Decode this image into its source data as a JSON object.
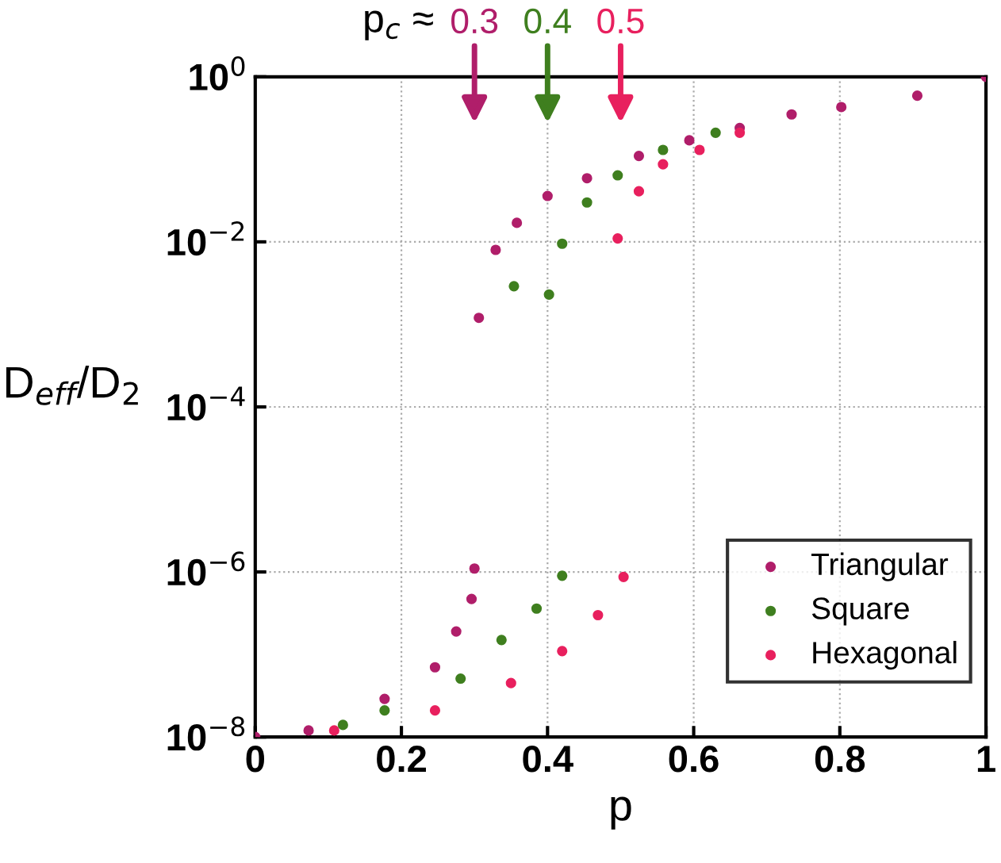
{
  "chart_data": {
    "type": "scatter",
    "xlabel": "p",
    "ylabel": "D$_{eff}$/D$_{2}$",
    "xlim": [
      0,
      1
    ],
    "xticks": [
      0,
      0.2,
      0.4,
      0.6,
      0.8,
      1
    ],
    "ylim": [
      1e-08,
      1
    ],
    "log": true,
    "yticks": [
      {
        "value": 1e-08,
        "label": "10$^{−8}$"
      },
      {
        "value": 1e-06,
        "label": "10$^{−6}$"
      },
      {
        "value": 0.0001,
        "label": "10$^{−4}$"
      },
      {
        "value": 0.01,
        "label": "10$^{−2}$"
      },
      {
        "value": 1,
        "label": "10$^{0}$"
      }
    ],
    "grid": true,
    "legend": "bottom right",
    "marker": "circle",
    "series": [
      {
        "name": "Triangular",
        "color": "#b01e6a",
        "x": [
          0,
          0.073,
          0.177,
          0.246,
          0.275,
          0.296,
          0.3,
          0.306,
          0.329,
          0.358,
          0.4,
          0.454,
          0.525,
          0.594,
          0.663,
          0.734,
          0.802,
          0.906,
          1.0
        ],
        "values": [
          1e-08,
          1.2e-08,
          2.9e-08,
          7e-08,
          1.9e-07,
          4.7e-07,
          1.1e-06,
          0.0012,
          0.008,
          0.017,
          0.036,
          0.059,
          0.11,
          0.17,
          0.24,
          0.35,
          0.43,
          0.59,
          1.0
        ]
      },
      {
        "name": "Square",
        "color": "#3f7f1f",
        "x": [
          0.12,
          0.177,
          0.281,
          0.337,
          0.385,
          0.42,
          0.354,
          0.402,
          0.42,
          0.454,
          0.496,
          0.558,
          0.63
        ],
        "values": [
          1.4e-08,
          2.1e-08,
          5.1e-08,
          1.5e-07,
          3.6e-07,
          9e-07,
          0.0029,
          0.0023,
          0.0095,
          0.03,
          0.064,
          0.13,
          0.21
        ]
      },
      {
        "name": "Hexagonal",
        "color": "#e8205e",
        "x": [
          0.108,
          0.246,
          0.35,
          0.42,
          0.469,
          0.504,
          0.496,
          0.525,
          0.558,
          0.608,
          0.663
        ],
        "values": [
          1.2e-08,
          2.1e-08,
          4.5e-08,
          1.1e-07,
          3e-07,
          8.7e-07,
          0.011,
          0.041,
          0.087,
          0.13,
          0.21
        ]
      }
    ],
    "annotations": [
      "p$_{c}$ ≈",
      "0.3",
      "0.4",
      "0.5"
    ]
  }
}
